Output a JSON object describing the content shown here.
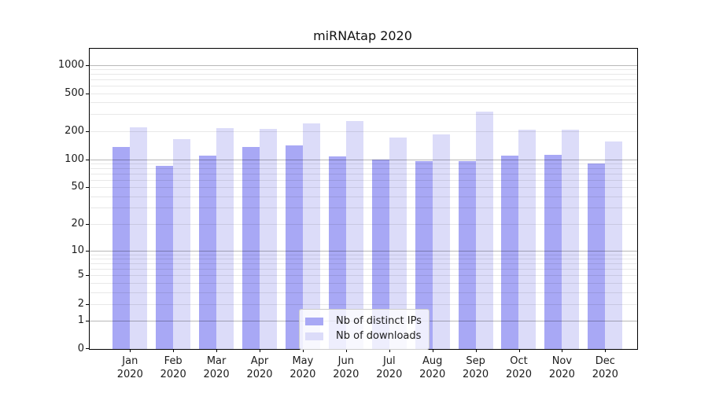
{
  "title": "miRNAtap 2020",
  "chart_data": {
    "type": "bar",
    "title": "miRNAtap 2020",
    "x_categories": [
      "Jan 2020",
      "Feb 2020",
      "Mar 2020",
      "Apr 2020",
      "May 2020",
      "Jun 2020",
      "Jul 2020",
      "Aug 2020",
      "Sep 2020",
      "Oct 2020",
      "Nov 2020",
      "Dec 2020"
    ],
    "x_tick_months": [
      "Jan",
      "Feb",
      "Mar",
      "Apr",
      "May",
      "Jun",
      "Jul",
      "Aug",
      "Sep",
      "Oct",
      "Nov",
      "Dec"
    ],
    "x_tick_year": "2020",
    "series": [
      {
        "name": "Nb of distinct IPs",
        "color": "#a8a8f5",
        "values": [
          135,
          85,
          110,
          135,
          140,
          108,
          100,
          95,
          96,
          109,
          112,
          90
        ]
      },
      {
        "name": "Nb of downloads",
        "color": "#dcdcf9",
        "values": [
          220,
          165,
          215,
          210,
          240,
          253,
          170,
          184,
          320,
          207,
          208,
          154
        ]
      }
    ],
    "y_axis": {
      "scale": "log1p",
      "ticks": [
        0,
        1,
        2,
        5,
        10,
        20,
        50,
        100,
        200,
        500,
        1000
      ],
      "major_gridlines": [
        1,
        10,
        100,
        1000
      ],
      "top_value": 1480
    },
    "legend": {
      "position": "lower center",
      "entries": [
        "Nb of distinct IPs",
        "Nb of downloads"
      ]
    },
    "grid": true
  },
  "colors": {
    "background": "#ffffff",
    "spine": "#000000",
    "grid_major": "#b8b8b8",
    "grid_minor": "#e8e8e8",
    "bar_distinct_ips": "#a8a8f5",
    "bar_downloads": "#dcdcf9"
  }
}
